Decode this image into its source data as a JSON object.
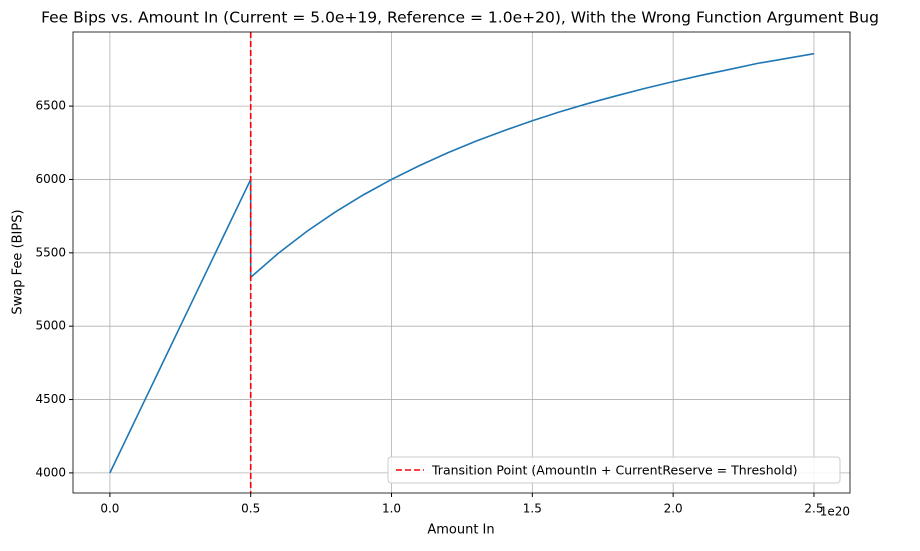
{
  "chart_data": {
    "type": "line",
    "title": "Fee Bips vs. Amount In (Current = 5.0e+19, Reference = 1.0e+20), With the Wrong Function Argument Bug",
    "x_label": "Amount In",
    "y_label": "Swap Fee (BIPS)",
    "x_offset_label": "1e20",
    "x": [
      0,
      0.1,
      0.2,
      0.3,
      0.4,
      0.5,
      0.5,
      0.6,
      0.7,
      0.8,
      0.9,
      1.0,
      1.1,
      1.2,
      1.3,
      1.4,
      1.5,
      1.6,
      1.7,
      1.8,
      1.9,
      2.0,
      2.1,
      2.2,
      2.3,
      2.4,
      2.5
    ],
    "values": [
      4000,
      4400,
      4800,
      5200,
      5600,
      6000,
      5333,
      5500,
      5647,
      5778,
      5895,
      6000,
      6095,
      6182,
      6261,
      6333,
      6400,
      6462,
      6519,
      6571,
      6621,
      6667,
      6710,
      6750,
      6791,
      6824,
      6857
    ],
    "color": "#1f77b4",
    "vline": {
      "x": 0.5,
      "label": "Transition Point (AmountIn + CurrentReserve = Threshold)",
      "color": "#ff0000"
    },
    "xlim": [
      -0.131,
      2.628
    ],
    "ylim": [
      3863,
      7005
    ],
    "xticks": [
      {
        "value": 0,
        "label": "0.0"
      },
      {
        "value": 0.5,
        "label": "0.5"
      },
      {
        "value": 1,
        "label": "1.0"
      },
      {
        "value": 1.5,
        "label": "1.5"
      },
      {
        "value": 2,
        "label": "2.0"
      },
      {
        "value": 2.5,
        "label": "2.5"
      }
    ],
    "yticks": [
      4000,
      4500,
      5000,
      5500,
      6000,
      6500
    ],
    "grid": true,
    "legend": "lower right"
  }
}
